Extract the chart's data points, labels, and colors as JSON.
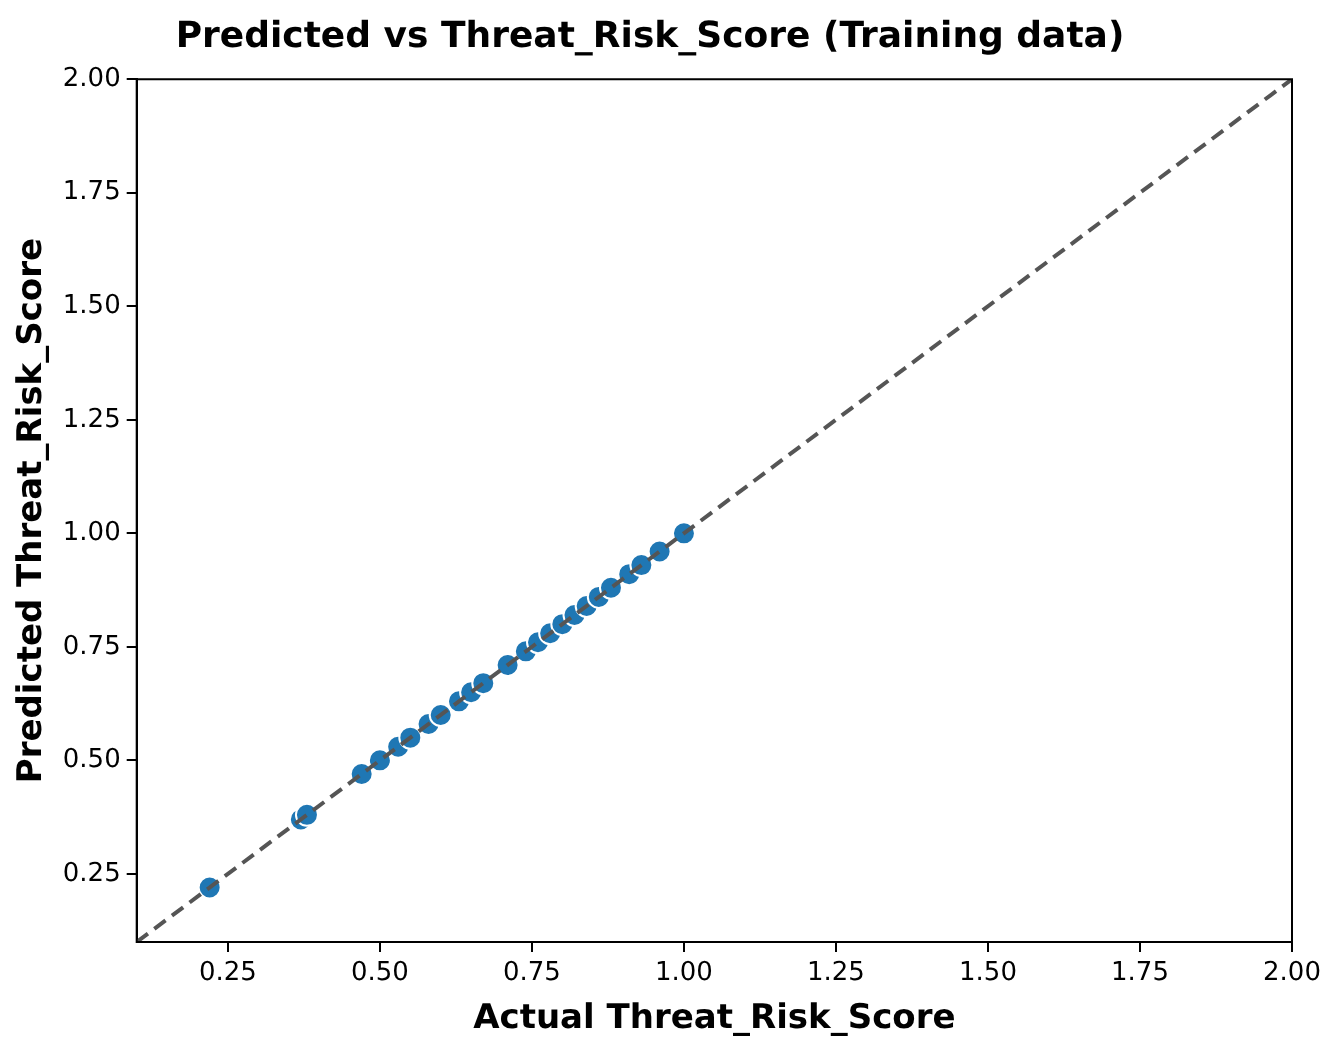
{
  "chart_data": {
    "type": "scatter",
    "title": "Predicted vs Threat_Risk_Score (Training data)",
    "xlabel": "Actual Threat_Risk_Score",
    "ylabel": "Predicted Threat_Risk_Score",
    "xlim": [
      0.1,
      2.0
    ],
    "ylim": [
      0.1,
      2.0
    ],
    "xticks": [
      0.25,
      {
        "value": 0.5,
        "label": "0.50"
      },
      0.75,
      {
        "value": 1,
        "label": "1.00"
      },
      1.25,
      {
        "value": 1.5,
        "label": "1.50"
      },
      1.75,
      {
        "value": 2,
        "label": "2.00"
      }
    ],
    "yticks": [
      0.25,
      {
        "value": 0.5,
        "label": "0.50"
      },
      0.75,
      {
        "value": 1,
        "label": "1.00"
      },
      1.25,
      {
        "value": 1.5,
        "label": "1.50"
      },
      1.75,
      {
        "value": 2,
        "label": "2.00"
      }
    ],
    "grid": false,
    "legend": false,
    "marker": "circle",
    "series": [
      {
        "color": "#1f77b4",
        "x": [
          0.22,
          0.37,
          0.38,
          0.47,
          0.5,
          0.53,
          0.55,
          0.58,
          0.6,
          0.63,
          0.65,
          0.67,
          0.71,
          0.74,
          0.76,
          0.78,
          0.8,
          0.82,
          0.84,
          0.86,
          0.88,
          0.91,
          0.93,
          0.96,
          1.0
        ],
        "values": [
          0.22,
          0.37,
          0.38,
          0.47,
          0.5,
          0.53,
          0.55,
          0.58,
          0.6,
          0.63,
          0.65,
          0.67,
          0.71,
          0.74,
          0.76,
          0.78,
          0.8,
          0.82,
          0.84,
          0.86,
          0.88,
          0.91,
          0.93,
          0.96,
          1.0
        ]
      },
      {
        "type": "line",
        "color": "#555555",
        "line_style": "dashed",
        "marker": "none",
        "x": [
          0.1,
          2.0
        ],
        "values": [
          0.1,
          2.0
        ]
      }
    ]
  }
}
